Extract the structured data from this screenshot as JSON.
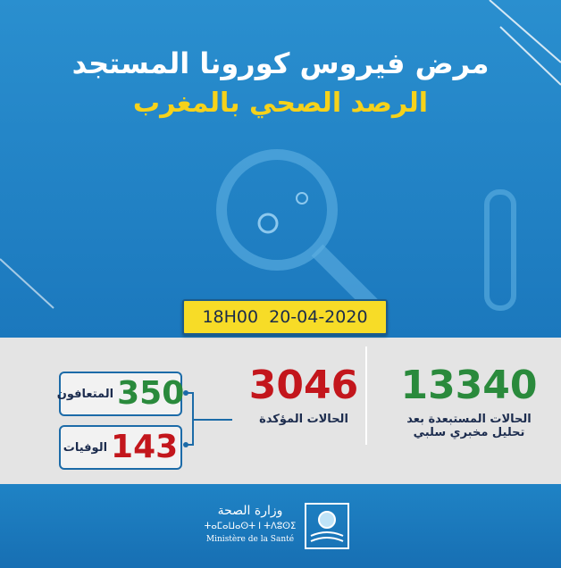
{
  "header": {
    "title": "مرض فيروس كورونا المستجد",
    "subtitle": "الرصد الصحي بالمغرب"
  },
  "timestamp": {
    "time": "18H00",
    "date": "20-04-2020"
  },
  "stats": {
    "excluded": {
      "value": 13340,
      "label_lines": [
        "الحالات المستبعدة بعد",
        "تحليل مخبري سلبي"
      ]
    },
    "confirmed": {
      "value": 3046,
      "label": "الحالات المؤكدة"
    },
    "recovered": {
      "value": 350,
      "label": "المتعافون"
    },
    "deaths": {
      "value": 143,
      "label": "الوفيات"
    }
  },
  "footer": {
    "arabic": "وزارة الصحة",
    "tifinagh": "ⵜⴰⵎⴰⵡⴰⵙⵜ ⵏ ⵜⴷⵓⵙⵉ",
    "french": "Ministère de la Santé"
  }
}
